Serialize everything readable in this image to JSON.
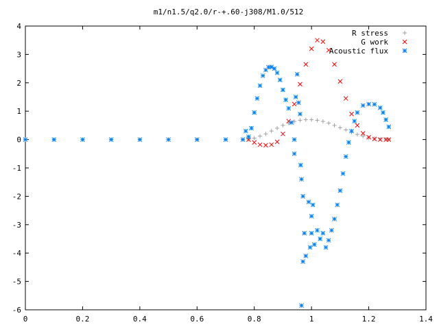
{
  "chart_data": {
    "type": "scatter",
    "title": "m1/n1.5/q2.0/r-+.60-j308/M1.0/512",
    "xlabel": "",
    "ylabel": "",
    "xlim": [
      0,
      1.4
    ],
    "ylim": [
      -6,
      4
    ],
    "grid": false,
    "legend_position": "top-right",
    "x_ticks": [
      "0",
      "0.2",
      "0.4",
      "0.6",
      "0.8",
      "1",
      "1.2",
      "1.4"
    ],
    "y_ticks": [
      "4",
      "3",
      "2",
      "1",
      "0",
      "-1",
      "-2",
      "-3",
      "-4",
      "-5",
      "-6"
    ],
    "series": [
      {
        "name": "R stress",
        "marker": "+",
        "color": "#a0a0a0",
        "points": [
          [
            0,
            0
          ],
          [
            0.1,
            0
          ],
          [
            0.2,
            0
          ],
          [
            0.3,
            0
          ],
          [
            0.4,
            0
          ],
          [
            0.5,
            0
          ],
          [
            0.6,
            0
          ],
          [
            0.7,
            0
          ],
          [
            0.76,
            0
          ],
          [
            0.78,
            0.01
          ],
          [
            0.8,
            0.05
          ],
          [
            0.82,
            0.12
          ],
          [
            0.84,
            0.2
          ],
          [
            0.86,
            0.3
          ],
          [
            0.88,
            0.4
          ],
          [
            0.9,
            0.5
          ],
          [
            0.92,
            0.58
          ],
          [
            0.94,
            0.64
          ],
          [
            0.96,
            0.68
          ],
          [
            0.98,
            0.7
          ],
          [
            1.0,
            0.7
          ],
          [
            1.02,
            0.68
          ],
          [
            1.04,
            0.64
          ],
          [
            1.06,
            0.58
          ],
          [
            1.08,
            0.5
          ],
          [
            1.1,
            0.42
          ],
          [
            1.12,
            0.34
          ],
          [
            1.14,
            0.26
          ],
          [
            1.16,
            0.18
          ],
          [
            1.18,
            0.12
          ],
          [
            1.2,
            0.07
          ],
          [
            1.22,
            0.04
          ],
          [
            1.24,
            0.02
          ],
          [
            1.26,
            0.01
          ],
          [
            1.27,
            0
          ]
        ]
      },
      {
        "name": "G work",
        "marker": "x",
        "color": "#ff0000",
        "points": [
          [
            0.78,
            0
          ],
          [
            0.8,
            -0.1
          ],
          [
            0.82,
            -0.18
          ],
          [
            0.84,
            -0.2
          ],
          [
            0.86,
            -0.18
          ],
          [
            0.88,
            -0.08
          ],
          [
            0.9,
            0.2
          ],
          [
            0.92,
            0.65
          ],
          [
            0.94,
            1.25
          ],
          [
            0.96,
            1.95
          ],
          [
            0.98,
            2.65
          ],
          [
            1.0,
            3.2
          ],
          [
            1.02,
            3.5
          ],
          [
            1.04,
            3.45
          ],
          [
            1.06,
            3.15
          ],
          [
            1.08,
            2.65
          ],
          [
            1.1,
            2.05
          ],
          [
            1.12,
            1.45
          ],
          [
            1.14,
            0.9
          ],
          [
            1.16,
            0.5
          ],
          [
            1.18,
            0.22
          ],
          [
            1.2,
            0.08
          ],
          [
            1.22,
            0.02
          ],
          [
            1.24,
            0
          ],
          [
            1.26,
            0
          ],
          [
            1.27,
            0
          ]
        ]
      },
      {
        "name": "Acoustic flux",
        "marker": "*",
        "color": "#0080ff",
        "points": [
          [
            0,
            0
          ],
          [
            0.1,
            0
          ],
          [
            0.2,
            0
          ],
          [
            0.3,
            0
          ],
          [
            0.4,
            0
          ],
          [
            0.5,
            0
          ],
          [
            0.6,
            0
          ],
          [
            0.7,
            0
          ],
          [
            0.76,
            0
          ],
          [
            0.77,
            0.3
          ],
          [
            0.78,
            0.1
          ],
          [
            0.79,
            0.4
          ],
          [
            0.8,
            0.95
          ],
          [
            0.81,
            1.45
          ],
          [
            0.82,
            1.9
          ],
          [
            0.83,
            2.25
          ],
          [
            0.84,
            2.45
          ],
          [
            0.85,
            2.55
          ],
          [
            0.86,
            2.56
          ],
          [
            0.87,
            2.5
          ],
          [
            0.88,
            2.35
          ],
          [
            0.89,
            2.1
          ],
          [
            0.9,
            1.75
          ],
          [
            0.91,
            1.4
          ],
          [
            0.92,
            1.1
          ],
          [
            0.93,
            0.6
          ],
          [
            0.94,
            0.0
          ],
          [
            0.94,
            -0.5
          ],
          [
            0.945,
            1.5
          ],
          [
            0.95,
            2.3
          ],
          [
            0.955,
            1.3
          ],
          [
            0.96,
            0.9
          ],
          [
            0.962,
            -0.9
          ],
          [
            0.965,
            -1.4
          ],
          [
            0.97,
            -2.0
          ],
          [
            0.975,
            -3.3
          ],
          [
            0.97,
            -4.3
          ],
          [
            0.98,
            -4.1
          ],
          [
            0.99,
            -2.2
          ],
          [
            0.995,
            -3.8
          ],
          [
            1.0,
            -2.7
          ],
          [
            1.0,
            -3.3
          ],
          [
            1.005,
            -2.3
          ],
          [
            1.01,
            -3.7
          ],
          [
            1.02,
            -3.2
          ],
          [
            1.03,
            -3.5
          ],
          [
            1.04,
            -3.3
          ],
          [
            1.05,
            -3.8
          ],
          [
            1.06,
            -3.55
          ],
          [
            1.07,
            -3.2
          ],
          [
            1.08,
            -2.8
          ],
          [
            1.09,
            -2.3
          ],
          [
            1.1,
            -1.8
          ],
          [
            1.11,
            -1.2
          ],
          [
            1.12,
            -0.6
          ],
          [
            1.13,
            -0.1
          ],
          [
            1.14,
            0.3
          ],
          [
            1.15,
            0.65
          ],
          [
            1.16,
            0.95
          ],
          [
            1.18,
            1.2
          ],
          [
            1.2,
            1.25
          ],
          [
            1.22,
            1.24
          ],
          [
            1.24,
            1.12
          ],
          [
            1.25,
            0.95
          ],
          [
            1.26,
            0.7
          ],
          [
            1.27,
            0.45
          ],
          [
            0.965,
            -5.85
          ]
        ]
      }
    ]
  }
}
